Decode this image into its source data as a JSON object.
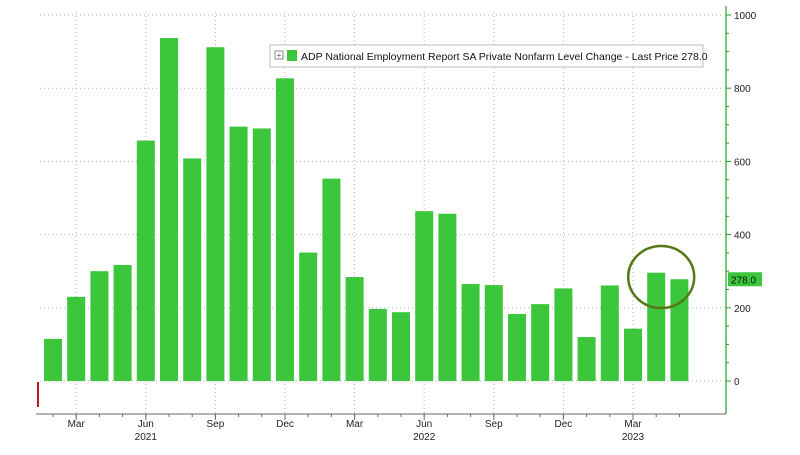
{
  "chart_data": {
    "type": "bar",
    "title": "",
    "xlabel": "",
    "ylabel": "",
    "ylim": [
      -100,
      1000
    ],
    "y_ticks": [
      0,
      200,
      400,
      600,
      800,
      1000
    ],
    "y_axis_position": "right",
    "grid": "dotted",
    "months": [
      "2021-02",
      "2021-03",
      "2021-04",
      "2021-05",
      "2021-06",
      "2021-07",
      "2021-08",
      "2021-09",
      "2021-10",
      "2021-11",
      "2021-12",
      "2022-01",
      "2022-02",
      "2022-03",
      "2022-04",
      "2022-05",
      "2022-06",
      "2022-07",
      "2022-08",
      "2022-09",
      "2022-10",
      "2022-11",
      "2022-12",
      "2023-01",
      "2023-02",
      "2023-03",
      "2023-04",
      "2023-05"
    ],
    "values": [
      115,
      230,
      300,
      317,
      657,
      937,
      608,
      912,
      695,
      690,
      827,
      351,
      553,
      284,
      197,
      188,
      464,
      457,
      265,
      262,
      183,
      210,
      253,
      120,
      261,
      143,
      296,
      278
    ],
    "x_tick_labels": [
      {
        "month": "2021-03",
        "label": "Mar"
      },
      {
        "month": "2021-06",
        "label": "Jun"
      },
      {
        "month": "2021-09",
        "label": "Sep"
      },
      {
        "month": "2021-12",
        "label": "Dec"
      },
      {
        "month": "2022-03",
        "label": "Mar"
      },
      {
        "month": "2022-06",
        "label": "Jun"
      },
      {
        "month": "2022-09",
        "label": "Sep"
      },
      {
        "month": "2022-12",
        "label": "Dec"
      },
      {
        "month": "2023-03",
        "label": "Mar"
      }
    ],
    "year_labels": [
      {
        "month": "2021-06",
        "label": "2021"
      },
      {
        "month": "2022-06",
        "label": "2022"
      },
      {
        "month": "2023-03",
        "label": "2023"
      }
    ],
    "legend": {
      "text": "ADP National Employment Report SA Private Nonfarm Level Change - Last Price 278.0",
      "placement": "top-right"
    },
    "last_value": {
      "label": "278.0",
      "value": 278
    },
    "highlight": {
      "month": "2023-04",
      "note": "circled last two bars"
    },
    "colors": {
      "bar": "#3cc63c",
      "bar_edge": "#2aa82a",
      "axis": "#23a123",
      "grid": "#b5b5b5",
      "circle": "#557a16",
      "last_badge": "#3cc63c",
      "red_marker": "#c01818"
    }
  }
}
